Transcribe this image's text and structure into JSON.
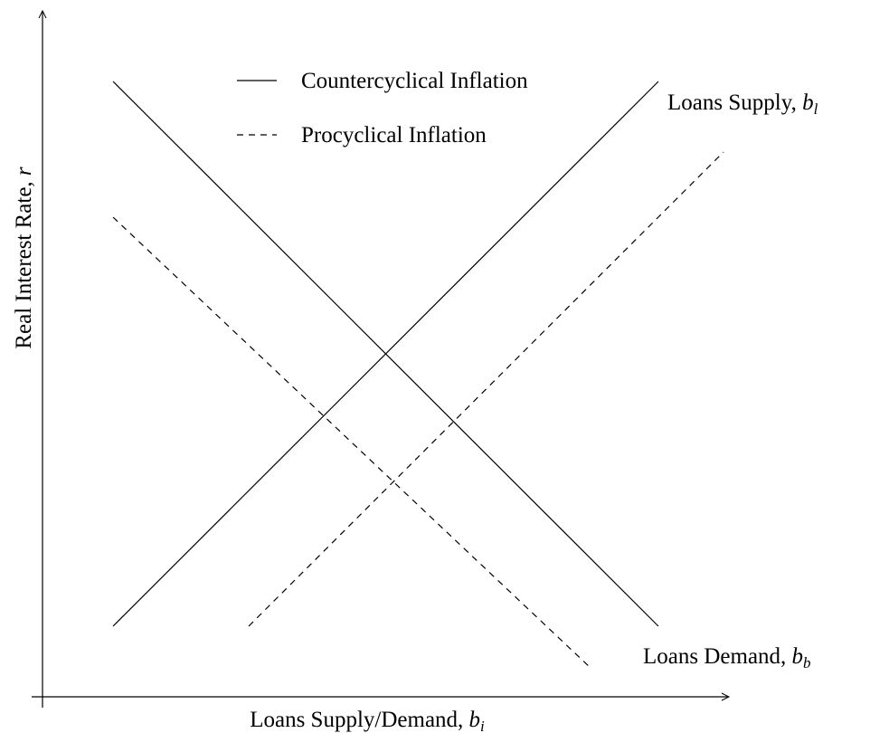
{
  "legend": {
    "items": [
      {
        "label": "Countercyclical Inflation"
      },
      {
        "label": "Procyclical Inflation"
      }
    ]
  },
  "curves": {
    "supply": {
      "text": "Loans Supply, ",
      "var": "b",
      "sub": "l"
    },
    "demand": {
      "text": "Loans Demand, ",
      "var": "b",
      "sub": "b"
    }
  },
  "axes": {
    "x": {
      "text": "Loans Supply/Demand, ",
      "var": "b",
      "sub": "i"
    },
    "y": {
      "text": "Real Interest Rate, ",
      "var": "r"
    }
  }
}
